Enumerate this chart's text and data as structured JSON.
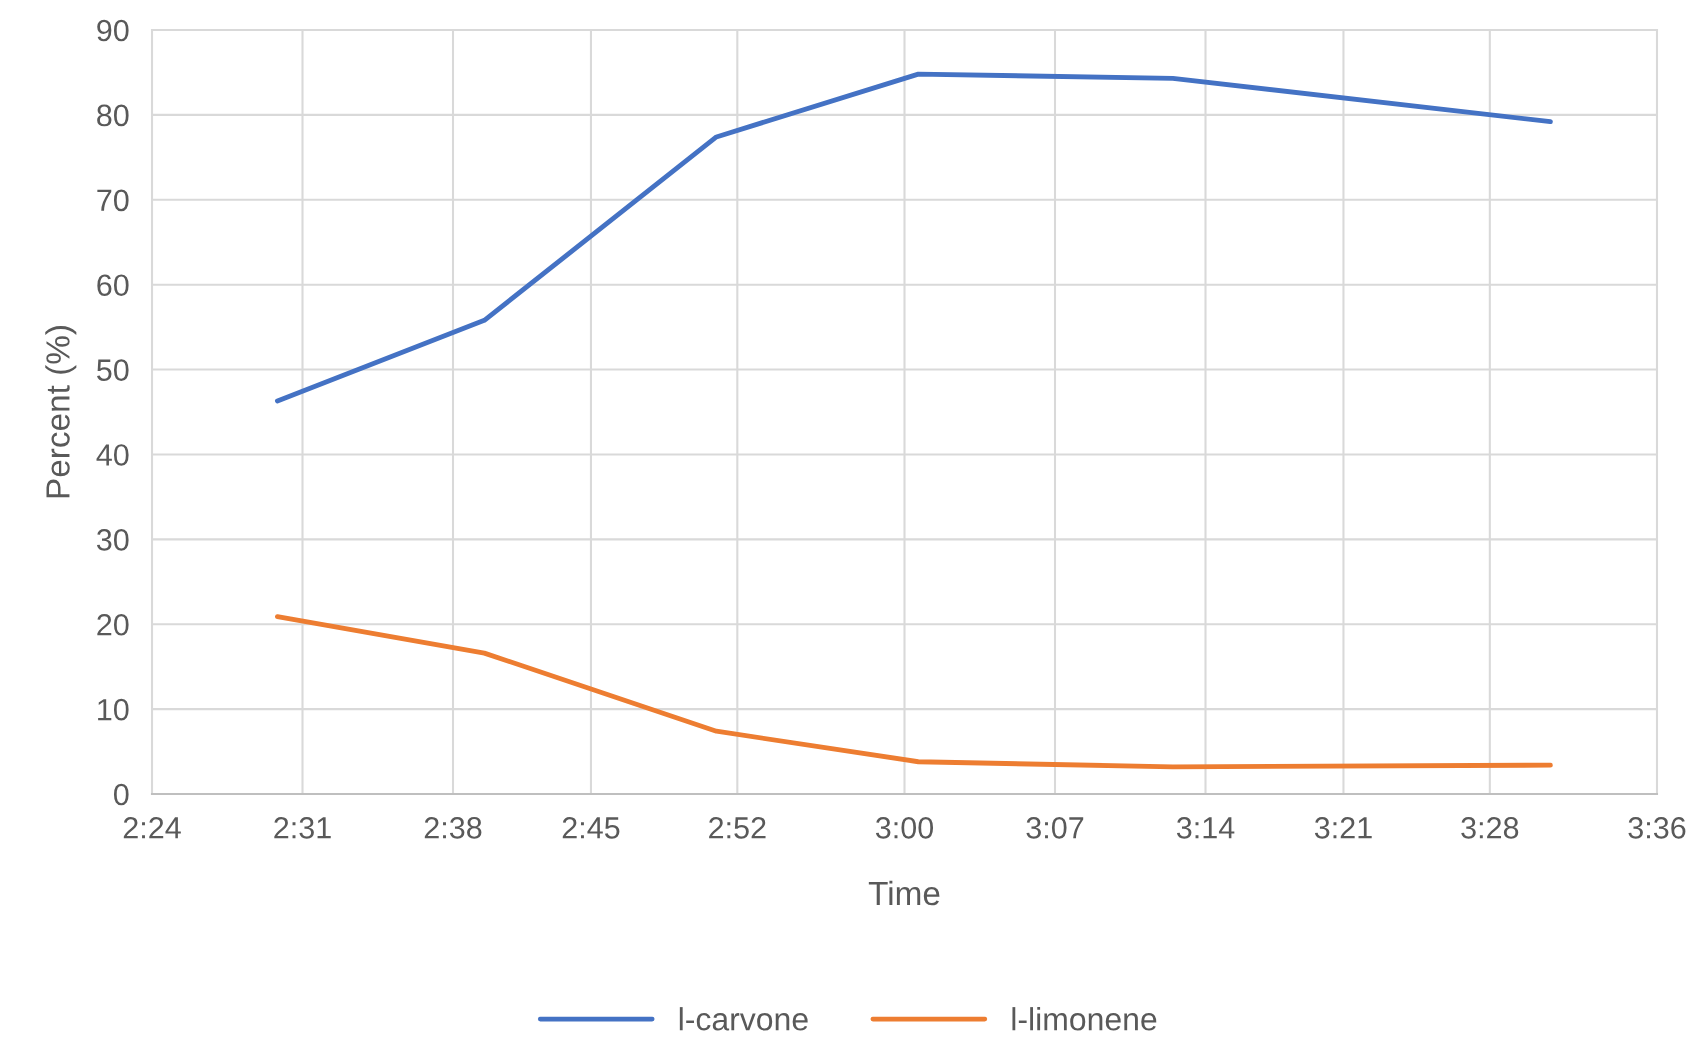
{
  "chart_data": {
    "type": "line",
    "xlabel": "Time",
    "ylabel": "Percent (%)",
    "xlim": [
      2.4,
      3.6
    ],
    "xticks": [
      {
        "value": 2.4,
        "label": "2:24"
      },
      {
        "value": 2.52,
        "label": "2:31"
      },
      {
        "value": 2.64,
        "label": "2:38"
      },
      {
        "value": 2.75,
        "label": "2:45"
      },
      {
        "value": 2.8667,
        "label": "2:52"
      },
      {
        "value": 3.0,
        "label": "3:00"
      },
      {
        "value": 3.12,
        "label": "3:07"
      },
      {
        "value": 3.24,
        "label": "3:14"
      },
      {
        "value": 3.35,
        "label": "3:21"
      },
      {
        "value": 3.4667,
        "label": "3:28"
      },
      {
        "value": 3.6,
        "label": "3:36"
      }
    ],
    "ylim": [
      0,
      90
    ],
    "yticks": [
      0,
      10,
      20,
      30,
      40,
      50,
      60,
      70,
      80,
      90
    ],
    "x": [
      2.5,
      2.665,
      2.85,
      3.011,
      3.214,
      3.515
    ],
    "series": [
      {
        "name": "l-carvone",
        "color": "#4472c4",
        "values": [
          46.3,
          55.8,
          77.4,
          84.8,
          84.3,
          79.2
        ]
      },
      {
        "name": "l-limonene",
        "color": "#ed7d31",
        "values": [
          20.9,
          16.6,
          7.4,
          3.8,
          3.2,
          3.4
        ]
      }
    ],
    "grid": true,
    "legend": "bottom",
    "marker": "none",
    "line_style": "solid"
  }
}
